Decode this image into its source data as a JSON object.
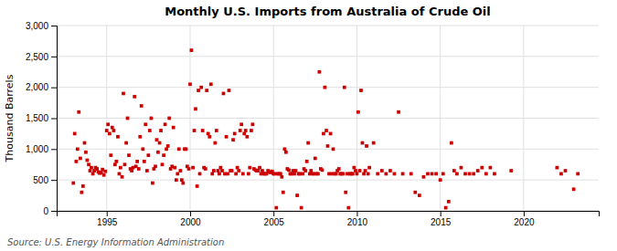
{
  "chart_data": {
    "type": "scatter",
    "title": "Monthly U.S. Imports from Australia of Crude Oil",
    "y_label": "Thousand Barrels",
    "annotations": [
      "Source: U.S. Energy Information Administration"
    ],
    "color": "#cc0000",
    "marker": "square",
    "grid": true,
    "xlim": [
      1992.0,
      2024.5
    ],
    "xticks": [
      1995,
      2000,
      2005,
      2010,
      2015,
      2020
    ],
    "ylim": [
      0,
      3000
    ],
    "yticks": [
      0,
      500,
      {
        "value": 1000,
        "label": "1,000"
      },
      {
        "value": 1500,
        "label": "1,500"
      },
      {
        "value": 2000,
        "label": "2,000"
      },
      {
        "value": 2500,
        "label": "2,500"
      },
      {
        "value": 3000,
        "label": "3,000"
      }
    ],
    "x": [
      1993.0,
      1993.08,
      1993.17,
      1993.25,
      1993.33,
      1993.42,
      1993.5,
      1993.58,
      1993.67,
      1993.75,
      1993.83,
      1993.92,
      1994.0,
      1994.08,
      1994.17,
      1994.25,
      1994.33,
      1994.42,
      1994.5,
      1994.58,
      1994.67,
      1994.75,
      1994.83,
      1994.92,
      1995.0,
      1995.08,
      1995.17,
      1995.25,
      1995.33,
      1995.42,
      1995.5,
      1995.58,
      1995.67,
      1995.75,
      1995.83,
      1995.92,
      1996.0,
      1996.08,
      1996.17,
      1996.25,
      1996.33,
      1996.42,
      1996.5,
      1996.58,
      1996.67,
      1996.75,
      1996.83,
      1996.92,
      1997.0,
      1997.08,
      1997.17,
      1997.25,
      1997.33,
      1997.42,
      1997.5,
      1997.58,
      1997.67,
      1997.75,
      1997.83,
      1997.92,
      1998.0,
      1998.08,
      1998.17,
      1998.25,
      1998.33,
      1998.42,
      1998.5,
      1998.58,
      1998.67,
      1998.75,
      1998.83,
      1998.92,
      1999.0,
      1999.08,
      1999.17,
      1999.25,
      1999.33,
      1999.42,
      1999.5,
      1999.58,
      1999.67,
      1999.75,
      1999.83,
      1999.92,
      2000.0,
      2000.08,
      2000.17,
      2000.25,
      2000.33,
      2000.42,
      2000.5,
      2000.58,
      2000.67,
      2000.75,
      2000.83,
      2000.92,
      2001.0,
      2001.08,
      2001.17,
      2001.25,
      2001.33,
      2001.42,
      2001.5,
      2001.58,
      2001.67,
      2001.75,
      2001.83,
      2001.92,
      2002.0,
      2002.08,
      2002.17,
      2002.25,
      2002.33,
      2002.42,
      2002.5,
      2002.58,
      2002.67,
      2002.75,
      2002.83,
      2002.92,
      2003.0,
      2003.08,
      2003.17,
      2003.25,
      2003.33,
      2003.42,
      2003.5,
      2003.58,
      2003.67,
      2003.75,
      2003.83,
      2003.92,
      2004.0,
      2004.08,
      2004.17,
      2004.25,
      2004.33,
      2004.42,
      2004.5,
      2004.58,
      2004.67,
      2004.75,
      2004.83,
      2004.92,
      2005.0,
      2005.08,
      2005.17,
      2005.25,
      2005.33,
      2005.42,
      2005.5,
      2005.58,
      2005.67,
      2005.75,
      2005.83,
      2005.92,
      2006.0,
      2006.08,
      2006.17,
      2006.25,
      2006.33,
      2006.42,
      2006.5,
      2006.58,
      2006.67,
      2006.75,
      2006.83,
      2006.92,
      2007.0,
      2007.08,
      2007.17,
      2007.25,
      2007.33,
      2007.42,
      2007.5,
      2007.58,
      2007.67,
      2007.75,
      2007.83,
      2007.92,
      2008.0,
      2008.08,
      2008.17,
      2008.25,
      2008.33,
      2008.42,
      2008.5,
      2008.58,
      2008.67,
      2008.75,
      2008.83,
      2008.92,
      2009.0,
      2009.08,
      2009.17,
      2009.25,
      2009.33,
      2009.42,
      2009.5,
      2009.58,
      2009.67,
      2009.75,
      2009.83,
      2009.92,
      2010.0,
      2010.08,
      2010.17,
      2010.25,
      2010.33,
      2010.42,
      2010.5,
      2010.58,
      2010.67,
      2010.75,
      2011.0,
      2011.25,
      2011.5,
      2011.75,
      2012.0,
      2012.25,
      2012.5,
      2012.75,
      2013.25,
      2013.5,
      2013.75,
      2014.0,
      2014.25,
      2014.5,
      2014.75,
      2015.0,
      2015.17,
      2015.33,
      2015.5,
      2015.67,
      2015.83,
      2016.0,
      2016.25,
      2016.5,
      2016.75,
      2017.0,
      2017.25,
      2017.5,
      2017.75,
      2018.0,
      2018.25,
      2019.25,
      2022.0,
      2022.25,
      2022.5,
      2023.0,
      2023.25
    ],
    "values": [
      450,
      1250,
      800,
      1000,
      1600,
      850,
      300,
      400,
      1100,
      950,
      820,
      750,
      650,
      700,
      600,
      650,
      700,
      680,
      630,
      610,
      620,
      670,
      580,
      640,
      1300,
      1400,
      1250,
      900,
      1350,
      1300,
      750,
      800,
      1200,
      600,
      700,
      550,
      1900,
      750,
      1100,
      1500,
      900,
      680,
      650,
      700,
      1850,
      720,
      800,
      680,
      1200,
      1700,
      1000,
      800,
      1400,
      650,
      900,
      1300,
      1500,
      450,
      680,
      720,
      1150,
      950,
      1100,
      1300,
      750,
      900,
      1400,
      1000,
      1050,
      1500,
      680,
      720,
      1350,
      700,
      500,
      600,
      1000,
      650,
      500,
      450,
      1000,
      1000,
      720,
      680,
      2050,
      2600,
      700,
      1300,
      1650,
      400,
      1950,
      600,
      2000,
      1300,
      700,
      680,
      1950,
      1250,
      1200,
      2050,
      600,
      650,
      1100,
      1300,
      650,
      600,
      700,
      650,
      1900,
      600,
      1200,
      600,
      1950,
      650,
      650,
      1150,
      1250,
      600,
      700,
      650,
      1300,
      1400,
      600,
      1250,
      1300,
      1200,
      600,
      700,
      1300,
      1400,
      680,
      660,
      650,
      650,
      700,
      600,
      650,
      600,
      600,
      600,
      650,
      630,
      620,
      640,
      600,
      600,
      50,
      600,
      600,
      600,
      550,
      300,
      1000,
      950,
      680,
      660,
      600,
      600,
      650,
      600,
      650,
      250,
      600,
      600,
      50,
      600,
      680,
      650,
      800,
      1100,
      600,
      650,
      600,
      600,
      850,
      600,
      600,
      2250,
      680,
      660,
      1250,
      2000,
      1300,
      1050,
      600,
      1250,
      600,
      1000,
      600,
      600,
      650,
      680,
      600,
      600,
      600,
      2000,
      300,
      600,
      50,
      600,
      600,
      600,
      700,
      650,
      600,
      1600,
      650,
      1950,
      1100,
      600,
      650,
      1050,
      600,
      700,
      1100,
      600,
      650,
      600,
      650,
      600,
      1600,
      600,
      600,
      300,
      250,
      550,
      600,
      600,
      600,
      500,
      600,
      50,
      150,
      1100,
      650,
      600,
      700,
      600,
      600,
      600,
      650,
      700,
      600,
      700,
      600,
      650,
      700,
      600,
      650,
      350,
      600
    ]
  }
}
